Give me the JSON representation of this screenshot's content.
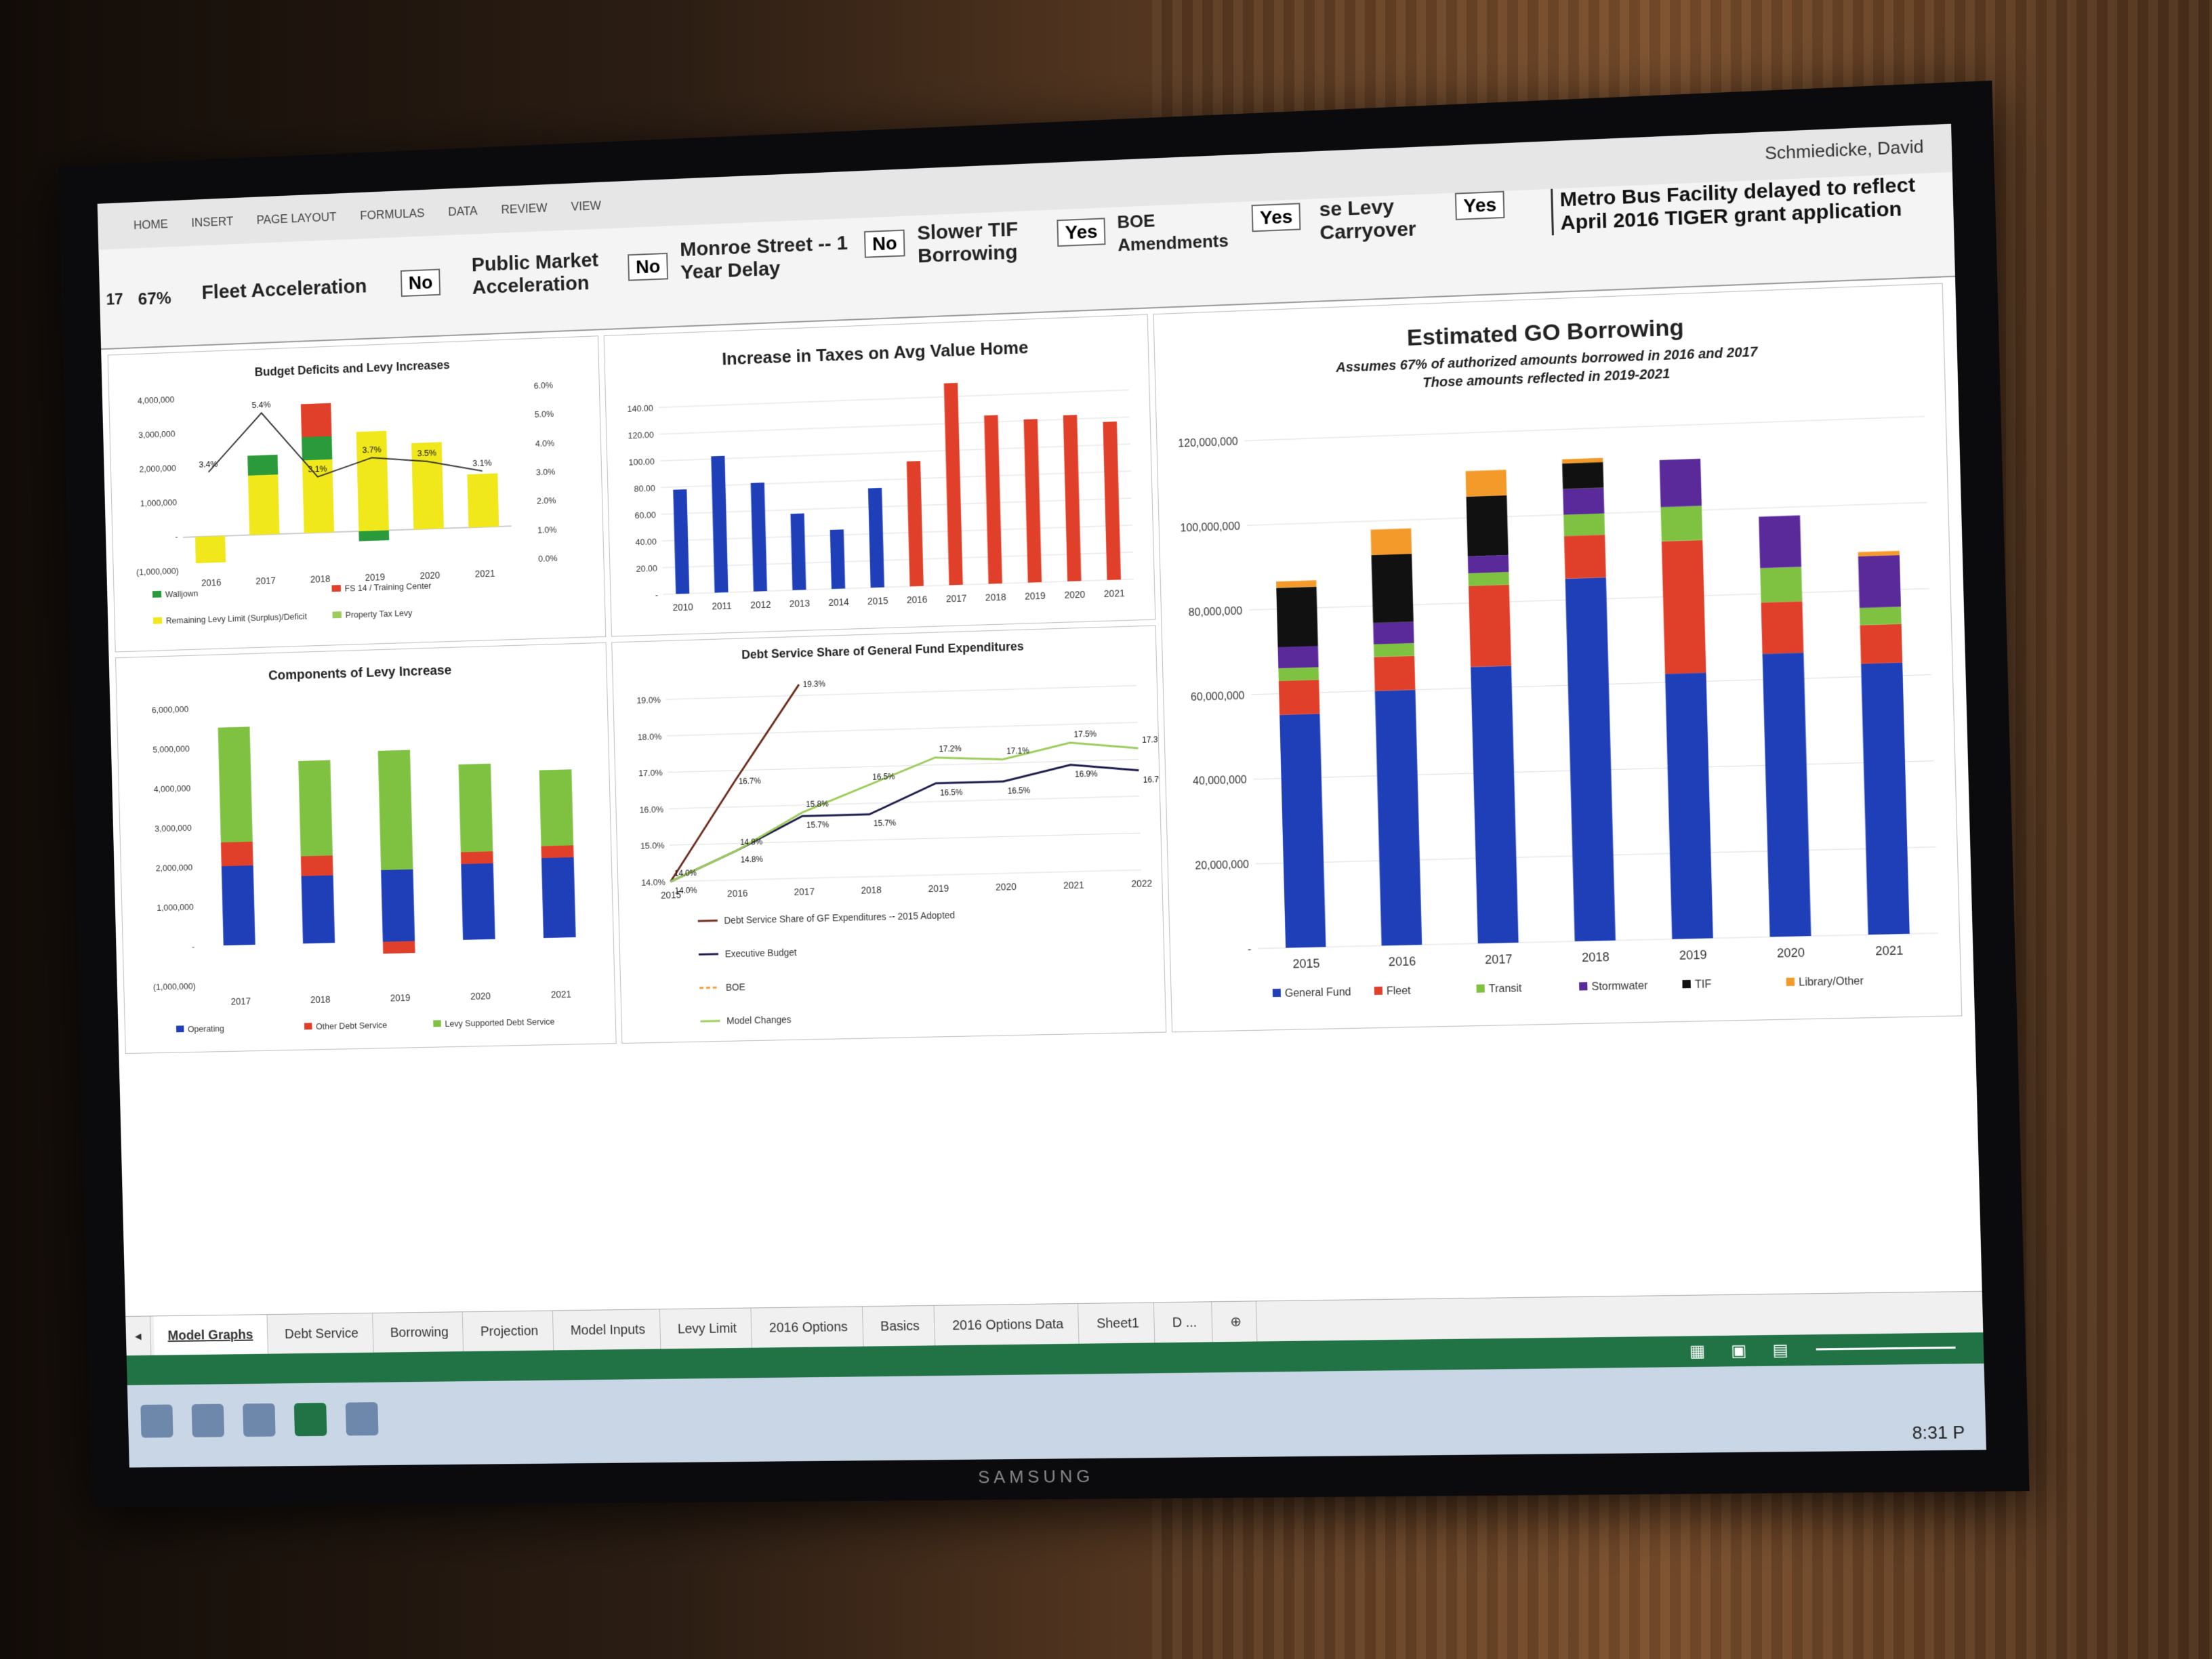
{
  "ribbon": {
    "tabs": [
      "HOME",
      "INSERT",
      "PAGE LAYOUT",
      "FORMULAS",
      "DATA",
      "REVIEW",
      "VIEW"
    ],
    "user": "Schmiedicke, David"
  },
  "controls": {
    "pct_cell": "17",
    "pct_value": "67%",
    "fleet": {
      "label": "Fleet Acceleration",
      "value": "No"
    },
    "public_market": {
      "label": "Public Market Acceleration",
      "value": "No"
    },
    "monroe": {
      "label": "Monroe Street -- 1 Year Delay",
      "value": "No"
    },
    "tif": {
      "label": "Slower TIF Borrowing",
      "value": "Yes"
    },
    "boe": {
      "label": "BOE Amendments",
      "value": "Yes"
    },
    "levy": {
      "label": "se Levy Carryover",
      "value": "Yes"
    },
    "note": "Metro  Bus Facility delayed to reflect April 2016 TIGER grant application"
  },
  "sheet_tabs": [
    "Model Graphs",
    "Debt Service",
    "Borrowing",
    "Projection",
    "Model Inputs",
    "Levy Limit",
    "2016 Options",
    "Basics",
    "2016 Options Data",
    "Sheet1",
    "D ..."
  ],
  "active_tab": "Model Graphs",
  "tv_brand": "SAMSUNG",
  "clock": "8:31 P",
  "colors": {
    "blue": "#1f3fb8",
    "red": "#e0402a",
    "green": "#7fc241",
    "yellow": "#f0e81a",
    "darkgreen": "#2a9a3a",
    "purple": "#5a2a9a",
    "black": "#111111",
    "orange": "#f39a2a",
    "brown": "#6b2a1a",
    "navy": "#1a1a4a",
    "lightgreen": "#9ccc5a"
  },
  "chart_data": [
    {
      "id": "budget",
      "type": "bar",
      "title": "Budget Deficits and Levy Increases",
      "categories": [
        "2016",
        "2017",
        "2018",
        "2019",
        "2020",
        "2021"
      ],
      "series": [
        {
          "name": "Remaining Levy Limit (Surplus)/Deficit",
          "values": [
            -800000,
            1800000,
            2200000,
            3000000,
            2600000,
            1600000
          ]
        },
        {
          "name": "Walljown",
          "values": [
            0,
            600000,
            700000,
            -300000,
            0,
            0
          ]
        },
        {
          "name": "FS 14 / Training Center",
          "values": [
            0,
            0,
            1000000,
            0,
            0,
            0
          ]
        }
      ],
      "line": {
        "name": "Property Tax Levy",
        "values": [
          3.4,
          5.4,
          3.1,
          3.7,
          3.5,
          3.1
        ],
        "labels": [
          "3.4%",
          "5.4%",
          "3.1%",
          "3.7%",
          "3.5%",
          "3.1%"
        ]
      },
      "y_left_ticks": [
        "4,000,000",
        "3,000,000",
        "2,000,000",
        "1,000,000",
        "-",
        "(1,000,000)"
      ],
      "y_right_ticks": [
        "6.0%",
        "5.0%",
        "4.0%",
        "3.0%",
        "2.0%",
        "1.0%",
        "0.0%"
      ],
      "ylim": [
        -1000000,
        4200000
      ]
    },
    {
      "id": "taxes",
      "type": "bar",
      "title": "Increase in Taxes on Avg Value Home",
      "categories": [
        "2010",
        "2011",
        "2012",
        "2013",
        "2014",
        "2015",
        "2016",
        "2017",
        "2018",
        "2019",
        "2020",
        "2021"
      ],
      "values": [
        78,
        102,
        81,
        57,
        44,
        74,
        93,
        150,
        125,
        121,
        123,
        117
      ],
      "bar_colors": [
        "blue",
        "blue",
        "blue",
        "blue",
        "blue",
        "blue",
        "red",
        "red",
        "red",
        "red",
        "red",
        "red"
      ],
      "y_ticks": [
        "140.00",
        "120.00",
        "100.00",
        "80.00",
        "60.00",
        "40.00",
        "20.00",
        "-"
      ],
      "ylim": [
        0,
        150
      ]
    },
    {
      "id": "components",
      "type": "bar",
      "title": "Components of Levy Increase",
      "categories": [
        "2017",
        "2018",
        "2019",
        "2020",
        "2021"
      ],
      "series": [
        {
          "name": "Operating",
          "values": [
            2000000,
            1700000,
            1800000,
            1900000,
            2000000
          ]
        },
        {
          "name": "Other Debt Service",
          "values": [
            600000,
            500000,
            -300000,
            300000,
            300000
          ]
        },
        {
          "name": "Levy Supported Debt Service",
          "values": [
            2900000,
            2400000,
            3000000,
            2200000,
            1900000
          ]
        }
      ],
      "y_ticks": [
        "6,000,000",
        "5,000,000",
        "4,000,000",
        "3,000,000",
        "2,000,000",
        "1,000,000",
        "-",
        "(1,000,000)"
      ],
      "ylim": [
        -1000000,
        6000000
      ]
    },
    {
      "id": "debtshare",
      "type": "line",
      "title": "Debt Service Share of General Fund Expenditures",
      "x": [
        "2015",
        "2016",
        "2017",
        "2018",
        "2019",
        "2020",
        "2021",
        "2022"
      ],
      "series": [
        {
          "name": "Debt Service Share of GF Expenditures -- 2015 Adopted",
          "values": [
            14.0,
            16.7,
            19.3,
            null,
            null,
            null,
            null,
            null
          ]
        },
        {
          "name": "Executive Budget",
          "values": [
            14.0,
            14.8,
            15.7,
            15.7,
            16.5,
            16.5,
            16.9,
            16.7
          ]
        },
        {
          "name": "BOE",
          "values": [
            null,
            null,
            null,
            null,
            null,
            null,
            null,
            null
          ]
        },
        {
          "name": "Model Changes",
          "values": [
            14.0,
            14.8,
            15.8,
            16.5,
            17.2,
            17.1,
            17.5,
            17.3
          ]
        }
      ],
      "annotations": [
        "19.3%",
        "16.7%",
        "15.8%",
        "15.8%",
        "16.5%",
        "15.7%",
        "14.8%",
        "14.0%",
        "17.2%",
        "17.1%",
        "16.5%",
        "16.5%",
        "17.5%",
        "16.9%",
        "17.3%",
        "16.7%"
      ],
      "y_ticks": [
        "19.0%",
        "18.0%",
        "17.0%",
        "16.0%",
        "15.0%",
        "14.0%"
      ],
      "ylim": [
        14.0,
        19.5
      ]
    },
    {
      "id": "goborrowing",
      "type": "bar",
      "title": "Estimated GO Borrowing",
      "subtitle": "Assumes 67% of authorized amounts borrowed in 2016 and 2017",
      "subtitle2": "Those amounts reflected in 2019-2021",
      "categories": [
        "2015",
        "2016",
        "2017",
        "2018",
        "2019",
        "2020",
        "2021"
      ],
      "series": [
        {
          "name": "General Fund",
          "color": "blue",
          "values": [
            55000000,
            60000000,
            65000000,
            85000000,
            62000000,
            66000000,
            63000000
          ]
        },
        {
          "name": "Fleet",
          "color": "red",
          "values": [
            8000000,
            8000000,
            19000000,
            10000000,
            31000000,
            12000000,
            9000000
          ]
        },
        {
          "name": "Transit",
          "color": "green",
          "values": [
            3000000,
            3000000,
            3000000,
            5000000,
            8000000,
            8000000,
            4000000
          ]
        },
        {
          "name": "Stormwater",
          "color": "purple",
          "values": [
            5000000,
            5000000,
            4000000,
            6000000,
            11000000,
            12000000,
            12000000
          ]
        },
        {
          "name": "TIF",
          "color": "black",
          "values": [
            14000000,
            16000000,
            14000000,
            6000000,
            0,
            0,
            0
          ]
        },
        {
          "name": "Library/Other",
          "color": "orange",
          "values": [
            1500000,
            6000000,
            6000000,
            1000000,
            0,
            0,
            1000000
          ]
        }
      ],
      "y_ticks": [
        "120,000,000",
        "100,000,000",
        "80,000,000",
        "60,000,000",
        "40,000,000",
        "20,000,000",
        "-"
      ],
      "ylim": [
        0,
        125000000
      ]
    }
  ]
}
